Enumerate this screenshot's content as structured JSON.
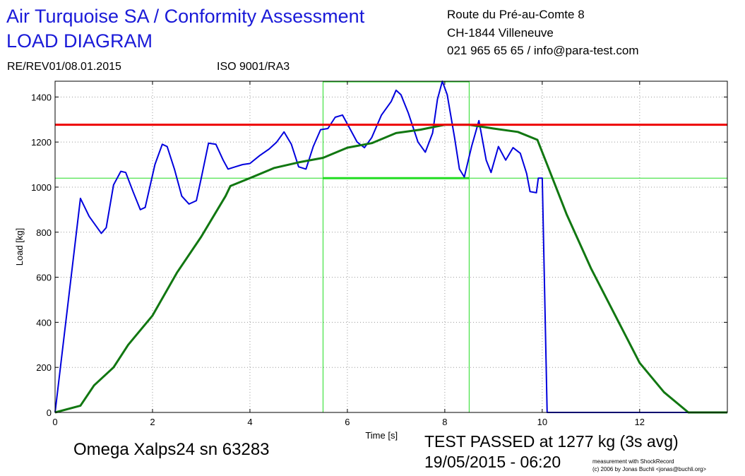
{
  "header": {
    "title_line1": "Air Turquoise SA / Conformity Assessment",
    "title_line2": "LOAD DIAGRAM",
    "revision": "RE/REV01/08.01.2015",
    "iso": "ISO 9001/RA3",
    "address_line1": "Route du Pré-au-Comte 8",
    "address_line2": "CH-1844 Villeneuve",
    "address_line3": "021 965 65 65 / info@para-test.com"
  },
  "footer": {
    "glider": "Omega Xalps24 sn 63283",
    "result": "TEST PASSED at 1277 kg (3s avg)",
    "datetime": "19/05/2015 - 06:20",
    "credit_line1": "measurement with ShockRecord",
    "credit_line2": "(c) 2006 by Jonas Buchli <jonas@buchli.org>"
  },
  "chart_data": {
    "type": "line",
    "xlabel": "Time [s]",
    "ylabel": "Load [kg]",
    "xlim": [
      0,
      13.8
    ],
    "ylim": [
      0,
      1470
    ],
    "xticks": [
      0,
      2,
      4,
      6,
      8,
      10,
      12
    ],
    "yticks": [
      0,
      200,
      400,
      600,
      800,
      1000,
      1200,
      1400
    ],
    "grid": true,
    "colors": {
      "raw": "#0000dd",
      "average": "#117711",
      "threshold": "#ee0000",
      "window": "#22dd22"
    },
    "threshold_load": 1277,
    "window": {
      "x_start": 5.5,
      "x_end": 8.5,
      "y_low": 1040,
      "y_high": 1470
    },
    "series": [
      {
        "key": "raw",
        "x": [
          0,
          0.52,
          0.7,
          0.95,
          1.05,
          1.2,
          1.35,
          1.45,
          1.6,
          1.75,
          1.85,
          2.05,
          2.2,
          2.3,
          2.45,
          2.6,
          2.75,
          2.9,
          3.0,
          3.15,
          3.3,
          3.45,
          3.55,
          3.7,
          3.85,
          4.0,
          4.2,
          4.4,
          4.55,
          4.7,
          4.85,
          5.0,
          5.15,
          5.3,
          5.45,
          5.6,
          5.75,
          5.9,
          6.05,
          6.2,
          6.35,
          6.5,
          6.7,
          6.9,
          7.0,
          7.1,
          7.25,
          7.45,
          7.6,
          7.75,
          7.85,
          7.95,
          8.05,
          8.2,
          8.3,
          8.4,
          8.55,
          8.7,
          8.85,
          8.95,
          9.1,
          9.25,
          9.4,
          9.55,
          9.68,
          9.75,
          9.88,
          9.92,
          10.0,
          10.1,
          10.3,
          13.8
        ],
        "y": [
          0,
          950,
          870,
          795,
          820,
          1010,
          1070,
          1065,
          980,
          900,
          910,
          1100,
          1190,
          1180,
          1080,
          960,
          925,
          940,
          1040,
          1195,
          1190,
          1120,
          1080,
          1090,
          1100,
          1105,
          1140,
          1170,
          1200,
          1245,
          1190,
          1090,
          1080,
          1180,
          1255,
          1260,
          1310,
          1320,
          1260,
          1200,
          1175,
          1220,
          1320,
          1380,
          1430,
          1410,
          1330,
          1200,
          1155,
          1240,
          1390,
          1470,
          1410,
          1220,
          1080,
          1045,
          1180,
          1295,
          1120,
          1065,
          1180,
          1120,
          1175,
          1150,
          1060,
          980,
          975,
          1040,
          1040,
          0,
          0,
          0
        ]
      },
      {
        "key": "average",
        "x": [
          0,
          0.52,
          0.8,
          1.2,
          1.5,
          2.0,
          2.5,
          3.0,
          3.5,
          3.6,
          4.0,
          4.5,
          5.0,
          5.5,
          6.0,
          6.5,
          7.0,
          7.5,
          8.0,
          8.5,
          9.0,
          9.5,
          9.9,
          10.1,
          10.5,
          11.0,
          11.5,
          12.0,
          12.5,
          13.0,
          13.8
        ],
        "y": [
          0,
          30,
          120,
          200,
          300,
          430,
          620,
          780,
          960,
          1005,
          1040,
          1085,
          1110,
          1130,
          1175,
          1195,
          1240,
          1255,
          1277,
          1277,
          1260,
          1245,
          1210,
          1100,
          880,
          640,
          430,
          220,
          90,
          0,
          0
        ]
      }
    ]
  }
}
